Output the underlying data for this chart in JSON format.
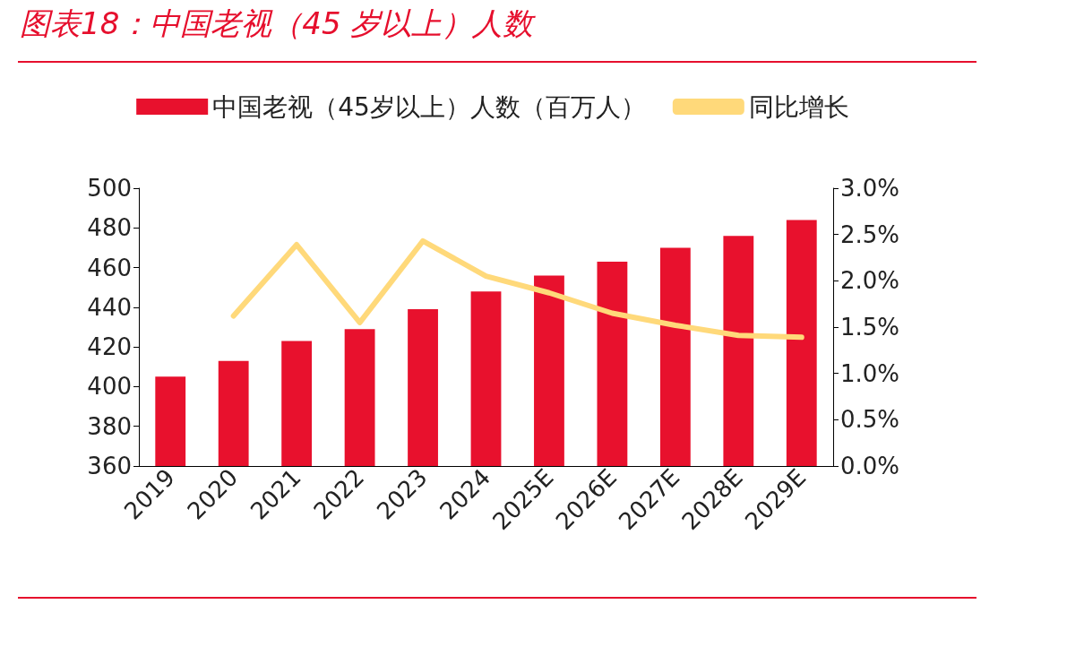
{
  "chart_data": {
    "type": "bar",
    "title": "图表18：中国老视（45 岁以上）人数",
    "categories": [
      "2019",
      "2020",
      "2021",
      "2022",
      "2023",
      "2024",
      "2025E",
      "2026E",
      "2027E",
      "2028E",
      "2029E"
    ],
    "series": [
      {
        "name": "中国老视（45岁以上）人数（百万人）",
        "color": "#e8112d",
        "values": [
          405,
          413,
          423,
          429,
          439,
          448,
          456,
          463,
          470,
          476,
          484
        ]
      },
      {
        "name": "同比增长",
        "type": "line",
        "axis": "y2",
        "color": "#ffd97a",
        "values": [
          null,
          1.62,
          2.39,
          1.55,
          2.43,
          2.05,
          1.87,
          1.65,
          1.52,
          1.41,
          1.39
        ]
      }
    ],
    "ylim": [
      360,
      500
    ],
    "yticks": [
      360,
      380,
      400,
      420,
      440,
      460,
      480,
      500
    ],
    "y2lim": [
      0,
      3
    ],
    "y2ticks": [
      {
        "value": 0,
        "label": "0.0%"
      },
      {
        "value": 0.5,
        "label": "0.5%"
      },
      {
        "value": 1,
        "label": "1.0%"
      },
      {
        "value": 1.5,
        "label": "1.5%"
      },
      {
        "value": 2,
        "label": "2.0%"
      },
      {
        "value": 2.5,
        "label": "2.5%"
      },
      {
        "value": 3,
        "label": "3.0%"
      }
    ],
    "grid": false,
    "legend": "top",
    "marker": "none"
  }
}
